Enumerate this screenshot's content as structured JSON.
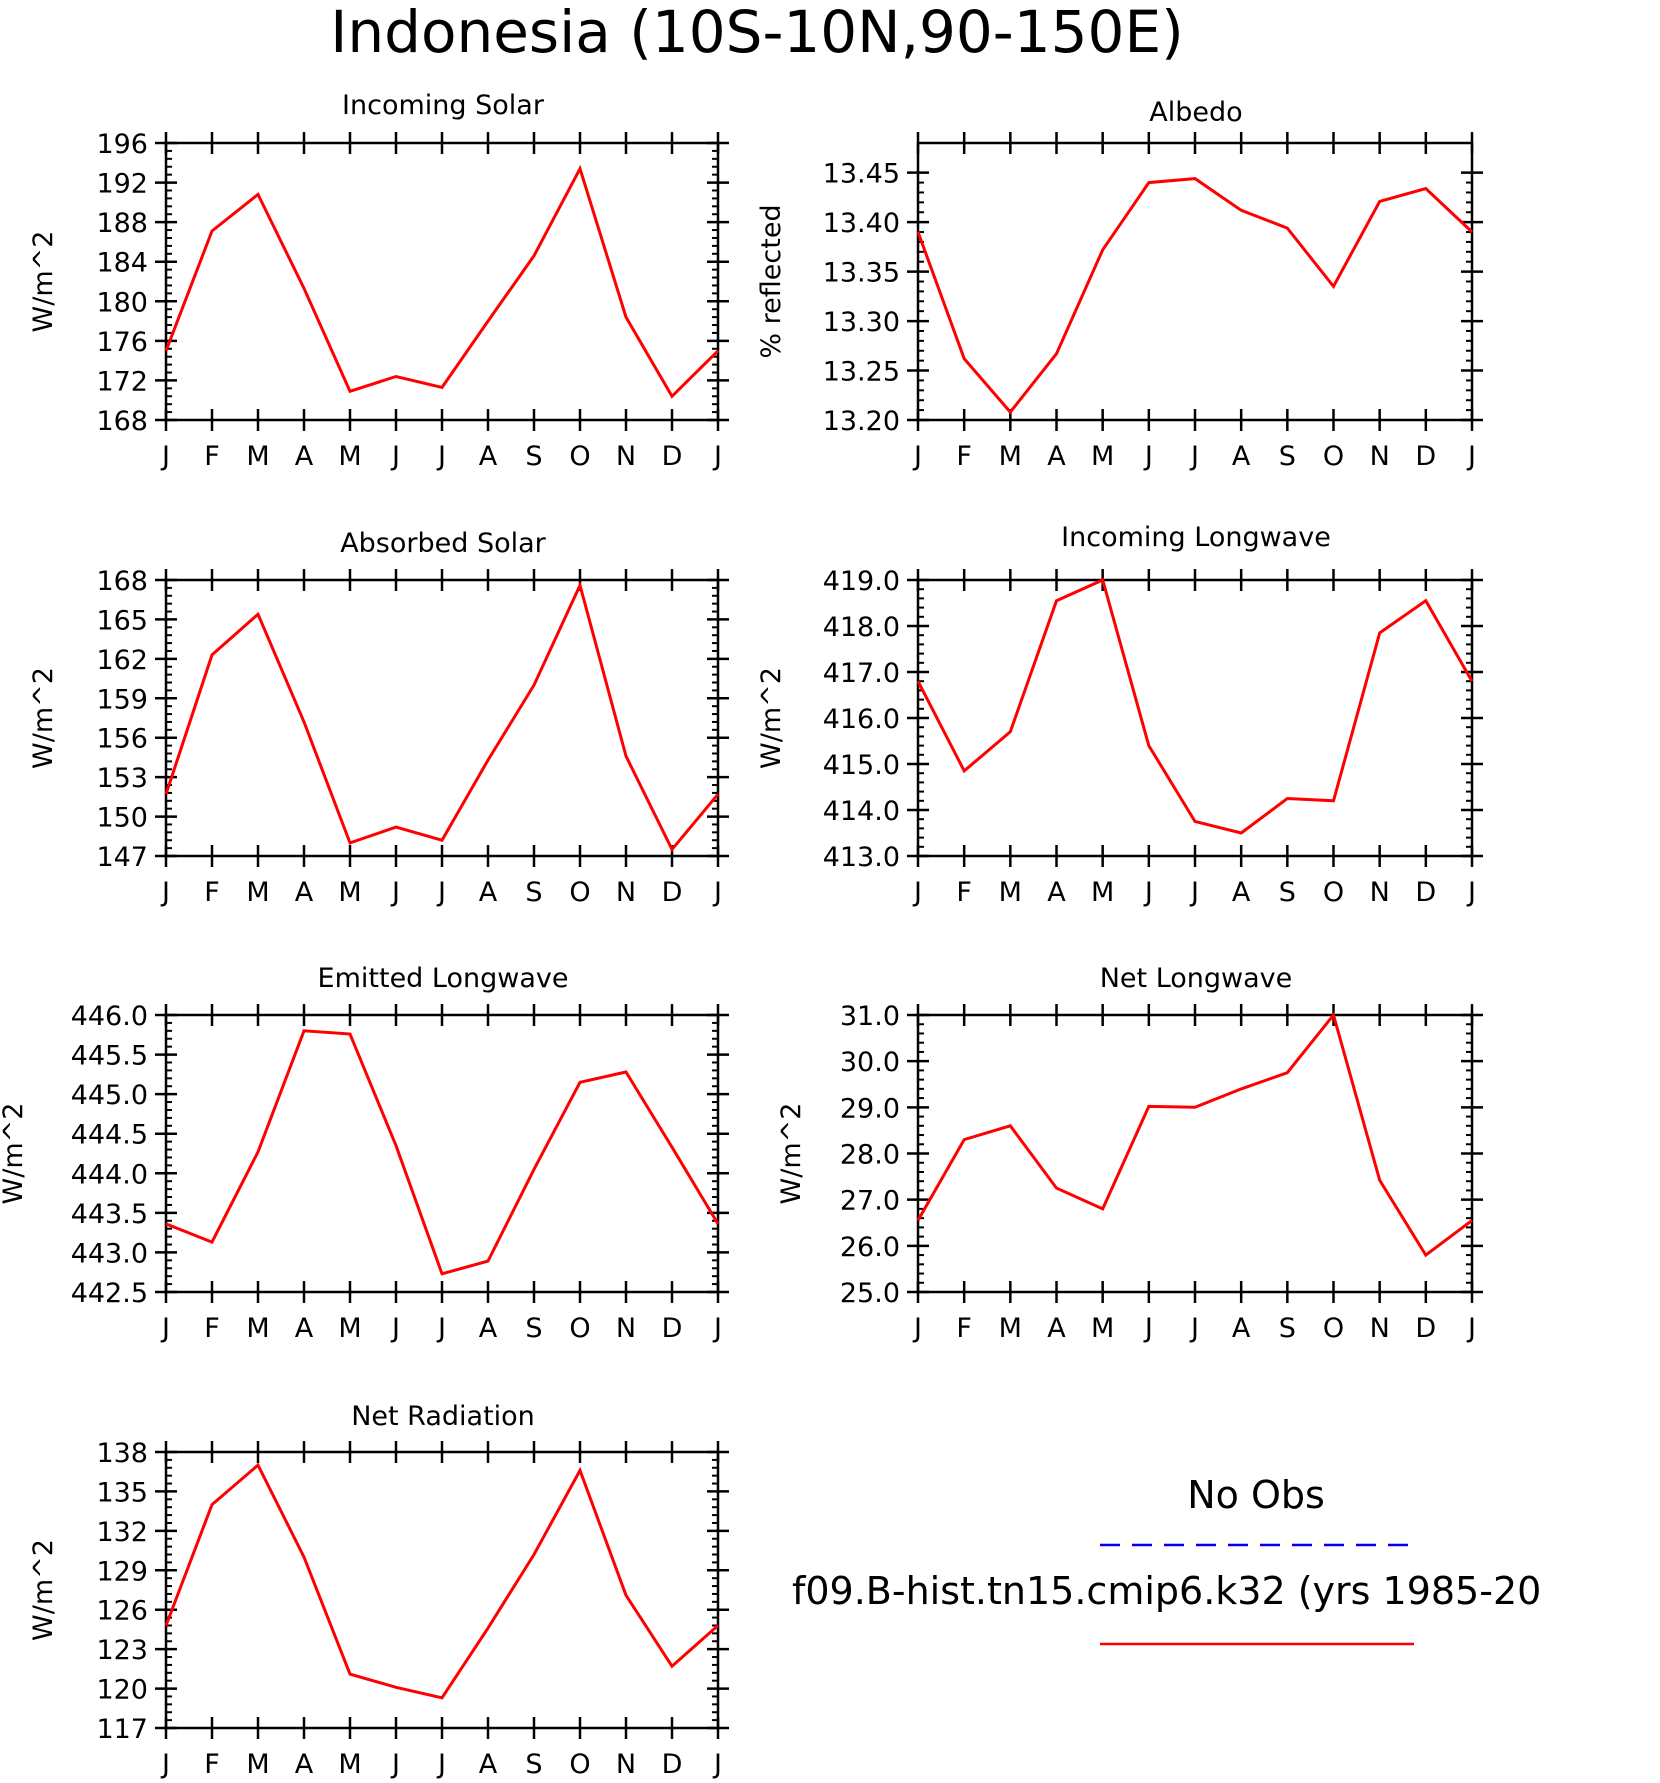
{
  "figure_title": "Indonesia (10S-10N,90-150E)",
  "legend": {
    "obs_label": "No Obs",
    "obs_color": "#0000ff",
    "model_label": "f09.B-hist.tn15.cmip6.k32 (yrs 1985-20",
    "model_color": "#ff0000"
  },
  "chart_data": [
    {
      "type": "line",
      "title": "Incoming Solar",
      "ylabel": "W/m^2",
      "xlabel": "",
      "categories": [
        "J",
        "F",
        "M",
        "A",
        "M",
        "J",
        "J",
        "A",
        "S",
        "O",
        "N",
        "D",
        "J"
      ],
      "ylim": [
        168,
        196
      ],
      "yticks": [
        168,
        172,
        176,
        180,
        184,
        188,
        192,
        196
      ],
      "ytick_labels": [
        "168",
        "172",
        "176",
        "180",
        "184",
        "188",
        "192",
        "196"
      ],
      "series": [
        {
          "values": [
            175.0,
            187.1,
            190.8,
            181.3,
            170.9,
            172.4,
            171.3,
            178.0,
            184.6,
            193.4,
            178.4,
            170.4,
            175.0
          ]
        }
      ]
    },
    {
      "type": "line",
      "title": "Albedo",
      "ylabel": "% reflected",
      "xlabel": "",
      "categories": [
        "J",
        "F",
        "M",
        "A",
        "M",
        "J",
        "J",
        "A",
        "S",
        "O",
        "N",
        "D",
        "J"
      ],
      "ylim": [
        13.2,
        13.48
      ],
      "yticks": [
        13.2,
        13.25,
        13.3,
        13.35,
        13.4,
        13.45
      ],
      "ytick_labels": [
        "13.20",
        "13.25",
        "13.30",
        "13.35",
        "13.40",
        "13.45"
      ],
      "series": [
        {
          "values": [
            13.39,
            13.262,
            13.208,
            13.267,
            13.372,
            13.44,
            13.444,
            13.412,
            13.394,
            13.335,
            13.421,
            13.434,
            13.39
          ]
        }
      ]
    },
    {
      "type": "line",
      "title": "Absorbed Solar",
      "ylabel": "W/m^2",
      "xlabel": "",
      "categories": [
        "J",
        "F",
        "M",
        "A",
        "M",
        "J",
        "J",
        "A",
        "S",
        "O",
        "N",
        "D",
        "J"
      ],
      "ylim": [
        147,
        168
      ],
      "yticks": [
        147,
        150,
        153,
        156,
        159,
        162,
        165,
        168
      ],
      "ytick_labels": [
        "147",
        "150",
        "153",
        "156",
        "159",
        "162",
        "165",
        "168"
      ],
      "series": [
        {
          "values": [
            151.7,
            162.3,
            165.4,
            157.2,
            148.0,
            149.2,
            148.2,
            154.3,
            160.0,
            167.6,
            154.6,
            147.5,
            151.7
          ]
        }
      ]
    },
    {
      "type": "line",
      "title": "Incoming Longwave",
      "ylabel": "W/m^2",
      "xlabel": "",
      "categories": [
        "J",
        "F",
        "M",
        "A",
        "M",
        "J",
        "J",
        "A",
        "S",
        "O",
        "N",
        "D",
        "J"
      ],
      "ylim": [
        413,
        419
      ],
      "yticks": [
        413,
        414,
        415,
        416,
        417,
        418,
        419
      ],
      "ytick_labels": [
        "413.0",
        "414.0",
        "415.0",
        "416.0",
        "417.0",
        "418.0",
        "419.0"
      ],
      "series": [
        {
          "values": [
            416.8,
            414.85,
            415.7,
            418.55,
            419.0,
            415.4,
            413.75,
            413.5,
            414.25,
            414.2,
            417.85,
            418.55,
            416.8
          ]
        }
      ]
    },
    {
      "type": "line",
      "title": "Emitted Longwave",
      "ylabel": "W/m^2",
      "xlabel": "",
      "categories": [
        "J",
        "F",
        "M",
        "A",
        "M",
        "J",
        "J",
        "A",
        "S",
        "O",
        "N",
        "D",
        "J"
      ],
      "ylim": [
        442.5,
        446
      ],
      "yticks": [
        442.5,
        443,
        443.5,
        444,
        444.5,
        445,
        445.5,
        446
      ],
      "ytick_labels": [
        "442.5",
        "443.0",
        "443.5",
        "444.0",
        "444.5",
        "445.0",
        "445.5",
        "446.0"
      ],
      "series": [
        {
          "values": [
            443.36,
            443.13,
            444.27,
            445.8,
            445.76,
            444.35,
            442.73,
            442.89,
            444.05,
            445.15,
            445.28,
            444.33,
            443.36
          ]
        }
      ]
    },
    {
      "type": "line",
      "title": "Net Longwave",
      "ylabel": "W/m^2",
      "xlabel": "",
      "categories": [
        "J",
        "F",
        "M",
        "A",
        "M",
        "J",
        "J",
        "A",
        "S",
        "O",
        "N",
        "D",
        "J"
      ],
      "ylim": [
        25,
        31
      ],
      "yticks": [
        25,
        26,
        27,
        28,
        29,
        30,
        31
      ],
      "ytick_labels": [
        "25.0",
        "26.0",
        "27.0",
        "28.0",
        "29.0",
        "30.0",
        "31.0"
      ],
      "series": [
        {
          "values": [
            26.55,
            28.3,
            28.6,
            27.25,
            26.8,
            29.02,
            29.0,
            29.4,
            29.75,
            31.0,
            27.42,
            25.8,
            26.55
          ]
        }
      ]
    },
    {
      "type": "line",
      "title": "Net Radiation",
      "ylabel": "W/m^2",
      "xlabel": "",
      "categories": [
        "J",
        "F",
        "M",
        "A",
        "M",
        "J",
        "J",
        "A",
        "S",
        "O",
        "N",
        "D",
        "J"
      ],
      "ylim": [
        117,
        138
      ],
      "yticks": [
        117,
        120,
        123,
        126,
        129,
        132,
        135,
        138
      ],
      "ytick_labels": [
        "117",
        "120",
        "123",
        "126",
        "129",
        "132",
        "135",
        "138"
      ],
      "series": [
        {
          "values": [
            124.8,
            134.0,
            137.0,
            130.0,
            121.1,
            120.1,
            119.3,
            124.6,
            130.2,
            136.6,
            127.1,
            121.7,
            124.8
          ]
        }
      ]
    }
  ]
}
